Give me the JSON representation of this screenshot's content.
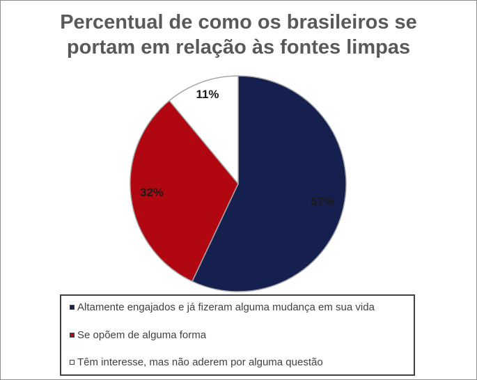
{
  "chart_data": {
    "type": "pie",
    "title_lines": [
      "Percentual de como os brasileiros se",
      "portam em relação às fontes limpas"
    ],
    "slices": [
      {
        "label": "Altamente engajados e já fizeram alguma mudança em sua vida",
        "value": 57,
        "value_label": "57%",
        "color": "#15204f"
      },
      {
        "label": "Se opõem de alguma forma",
        "value": 32,
        "value_label": "32%",
        "color": "#b00711"
      },
      {
        "label": "Têm interesse, mas não aderem por alguma questão",
        "value": 11,
        "value_label": "11%",
        "color": "#ffffff"
      }
    ],
    "legend_position": "bottom"
  }
}
